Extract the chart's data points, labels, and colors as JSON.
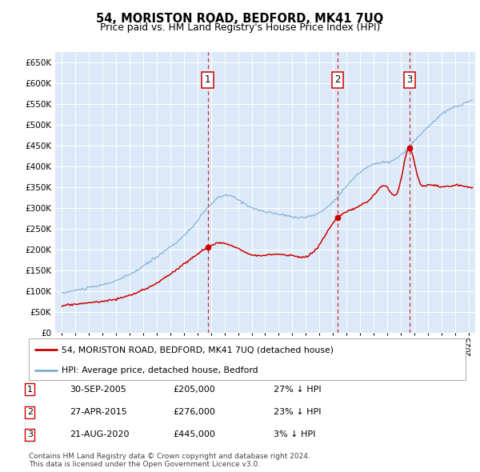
{
  "title": "54, MORISTON ROAD, BEDFORD, MK41 7UQ",
  "subtitle": "Price paid vs. HM Land Registry's House Price Index (HPI)",
  "ylim": [
    0,
    675000
  ],
  "yticks": [
    0,
    50000,
    100000,
    150000,
    200000,
    250000,
    300000,
    350000,
    400000,
    450000,
    500000,
    550000,
    600000,
    650000
  ],
  "xlim_start": 1994.5,
  "xlim_end": 2025.5,
  "bg_color": "#dce9f8",
  "grid_color": "#ffffff",
  "red_color": "#cc0000",
  "blue_color": "#7aafd4",
  "sale_points": [
    {
      "year": 2005.75,
      "price": 205000,
      "label": "1"
    },
    {
      "year": 2015.33,
      "price": 276000,
      "label": "2"
    },
    {
      "year": 2020.65,
      "price": 445000,
      "label": "3"
    }
  ],
  "legend_red_label": "54, MORISTON ROAD, BEDFORD, MK41 7UQ (detached house)",
  "legend_blue_label": "HPI: Average price, detached house, Bedford",
  "table_data": [
    [
      "1",
      "30-SEP-2005",
      "£205,000",
      "27% ↓ HPI"
    ],
    [
      "2",
      "27-APR-2015",
      "£276,000",
      "23% ↓ HPI"
    ],
    [
      "3",
      "21-AUG-2020",
      "£445,000",
      "3% ↓ HPI"
    ]
  ],
  "footnote": "Contains HM Land Registry data © Crown copyright and database right 2024.\nThis data is licensed under the Open Government Licence v3.0."
}
